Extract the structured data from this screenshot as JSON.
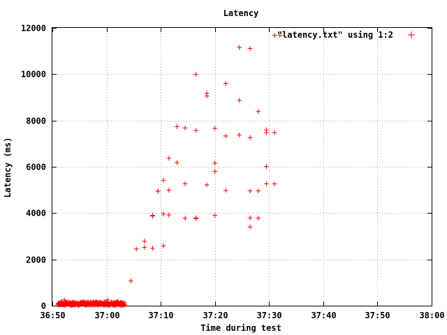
{
  "chart_data": {
    "type": "scatter",
    "title": "Latency",
    "xlabel": "Time during test",
    "ylabel": "Latency (ms)",
    "x_unit": "seconds",
    "x_tick_values": [
      3410,
      3420,
      3430,
      3440,
      3450,
      3460,
      3470,
      3480
    ],
    "x_tick_labels": [
      "36:50",
      "37:00",
      "37:10",
      "37:20",
      "37:30",
      "37:40",
      "37:50",
      "38:00"
    ],
    "y_ticks": [
      0,
      2000,
      4000,
      6000,
      8000,
      10000,
      12000
    ],
    "xlim": [
      3410,
      3480
    ],
    "ylim": [
      0,
      12000
    ],
    "grid": true,
    "legend_position": "top-right",
    "colors": {
      "series": "#ff0000",
      "grid": "#a0a0a0",
      "axes": "#000000"
    },
    "series": [
      {
        "name": "\"latency.txt\" using 1:2",
        "marker": "plus",
        "x": [
          3424.5,
          3425.5,
          3427.0,
          3427.0,
          3428.5,
          3428.5,
          3428.5,
          3429.5,
          3429.5,
          3430.5,
          3430.5,
          3430.5,
          3431.5,
          3431.5,
          3431.5,
          3433.0,
          3433.0,
          3434.5,
          3434.5,
          3434.5,
          3436.5,
          3436.5,
          3436.5,
          3436.5,
          3438.5,
          3438.5,
          3438.5,
          3440.0,
          3440.0,
          3440.0,
          3440.0,
          3442.0,
          3442.0,
          3442.0,
          3444.5,
          3444.5,
          3444.5,
          3446.5,
          3446.5,
          3446.5,
          3446.5,
          3446.5,
          3448.0,
          3448.0,
          3448.0,
          3449.5,
          3449.5,
          3449.5,
          3449.5,
          3451.0,
          3451.0,
          3451.0,
          3452.0
        ],
        "y": [
          1070,
          2450,
          2520,
          2780,
          3870,
          3900,
          2480,
          4950,
          4950,
          2590,
          3960,
          5420,
          3920,
          4990,
          6370,
          6180,
          7740,
          3780,
          5270,
          7680,
          7570,
          9990,
          3760,
          3790,
          5220,
          9060,
          9170,
          3900,
          6160,
          7660,
          5800,
          7330,
          9600,
          4980,
          7380,
          8870,
          11160,
          3790,
          3400,
          4960,
          7260,
          11110,
          4960,
          8390,
          3780,
          6010,
          7590,
          5270,
          7480,
          11680,
          5260,
          7480,
          11680
        ]
      }
    ],
    "dense_band": {
      "x_start": 3411.0,
      "x_end": 3423.3,
      "y_min": 0,
      "y_max": 250,
      "typical": 90
    }
  }
}
